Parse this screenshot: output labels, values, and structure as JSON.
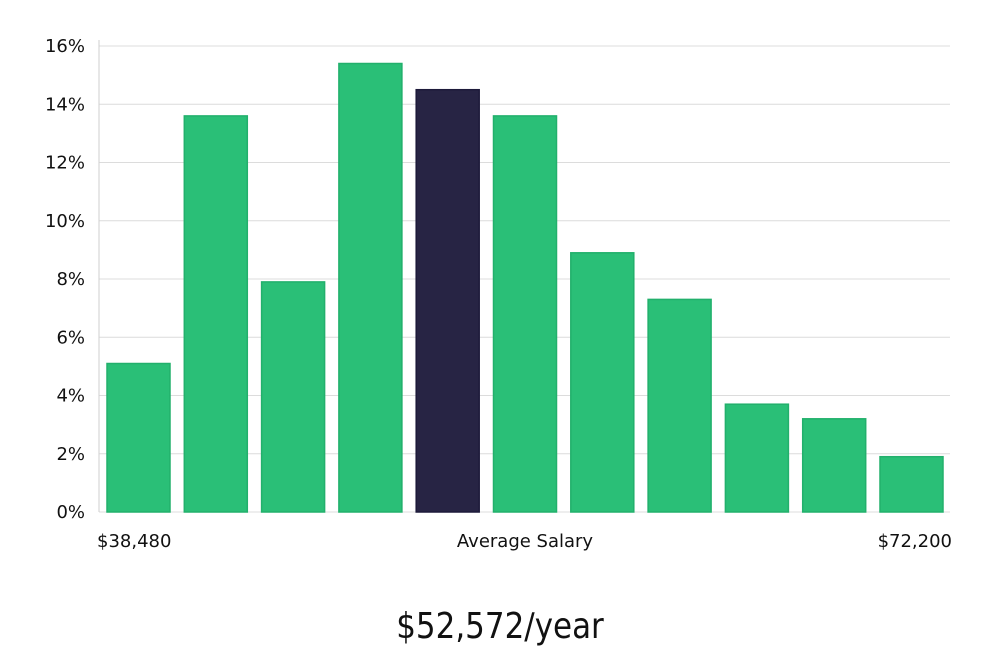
{
  "chart_data": {
    "type": "bar",
    "categories": [
      "",
      "",
      "",
      "",
      "",
      "",
      "",
      "",
      "",
      "",
      ""
    ],
    "values": [
      5.1,
      13.6,
      7.9,
      15.4,
      14.5,
      13.6,
      8.9,
      7.3,
      3.7,
      3.2,
      1.9
    ],
    "highlight_index": 4,
    "ylim": [
      0,
      16
    ],
    "yticks": [
      0,
      2,
      4,
      6,
      8,
      10,
      12,
      14,
      16
    ],
    "ytick_suffix": "%",
    "grid": true,
    "x_labels": {
      "left": "$38,480",
      "center": "Average Salary",
      "right": "$72,200"
    },
    "colors": {
      "bar": "#2abf77",
      "highlight": "#272444",
      "grid": "#dcdcdc"
    }
  },
  "caption": "$52,572/year"
}
